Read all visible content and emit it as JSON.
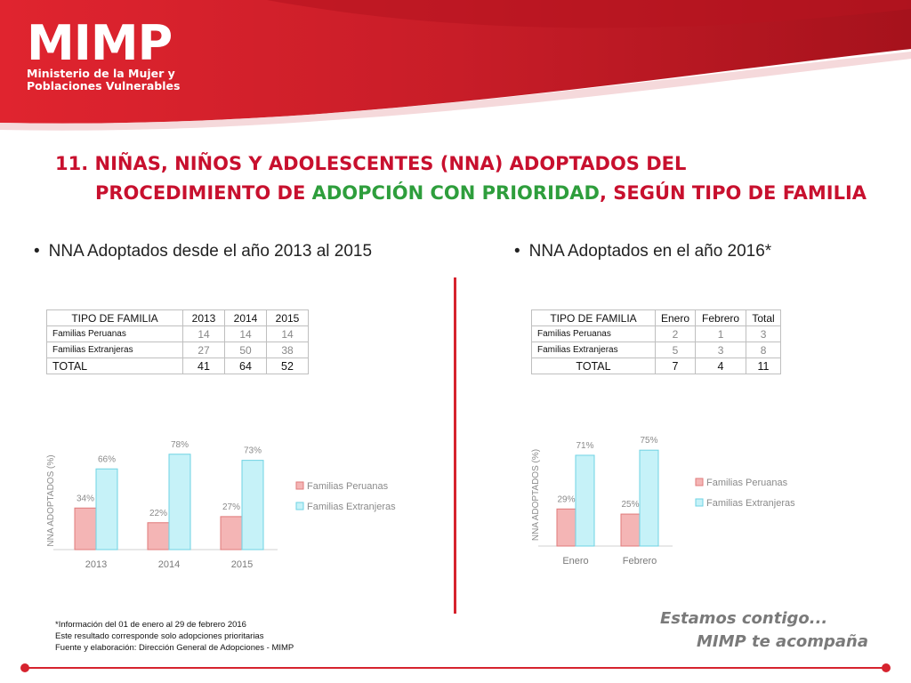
{
  "header": {
    "logo_text": "MIMP",
    "logo_line1": "Ministerio de la Mujer y",
    "logo_line2": "Poblaciones Vulnerables"
  },
  "title": {
    "line1": "11. NIÑAS, NIÑOS Y ADOLESCENTES (NNA) ADOPTADOS DEL",
    "line2_part1": "PROCEDIMIENTO DE ",
    "line2_green": "ADOPCIÓN CON PRIORIDAD",
    "line2_part2": ", SEGÚN TIPO DE FAMILIA"
  },
  "left": {
    "bullet": "NNA Adoptados desde el año 2013 al 2015",
    "table": {
      "headers": [
        "TIPO DE FAMILIA",
        "2013",
        "2014",
        "2015"
      ],
      "rows": [
        [
          "Familias Peruanas",
          "14",
          "14",
          "14"
        ],
        [
          "Familias Extranjeras",
          "27",
          "50",
          "38"
        ]
      ],
      "total": [
        "TOTAL",
        "41",
        "64",
        "52"
      ]
    }
  },
  "right": {
    "bullet": "NNA Adoptados en el año 2016*",
    "table": {
      "headers": [
        "TIPO DE FAMILIA",
        "Enero",
        "Febrero",
        "Total"
      ],
      "rows": [
        [
          "Familias Peruanas",
          "2",
          "1",
          "3"
        ],
        [
          "Familias Extranjeras",
          "5",
          "3",
          "8"
        ]
      ],
      "total": [
        "TOTAL",
        "7",
        "4",
        "11"
      ]
    }
  },
  "chart_data": [
    {
      "type": "bar",
      "categories": [
        "2013",
        "2014",
        "2015"
      ],
      "series": [
        {
          "name": "Familias Peruanas",
          "values": [
            34,
            22,
            27
          ],
          "labels": [
            "34%",
            "22%",
            "27%"
          ],
          "color": "#f4b5b5"
        },
        {
          "name": "Familias Extranjeras",
          "values": [
            66,
            78,
            73
          ],
          "labels": [
            "66%",
            "78%",
            "73%"
          ],
          "color": "#c6f2f8"
        }
      ],
      "ylabel": "NNA ADOPTADOS (%)",
      "ylim": [
        0,
        80
      ],
      "legend": "right"
    },
    {
      "type": "bar",
      "categories": [
        "Enero",
        "Febrero"
      ],
      "series": [
        {
          "name": "Familias Peruanas",
          "values": [
            29,
            25
          ],
          "labels": [
            "29%",
            "25%"
          ],
          "color": "#f4b5b5"
        },
        {
          "name": "Familias Extranjeras",
          "values": [
            71,
            75
          ],
          "labels": [
            "71%",
            "75%"
          ],
          "color": "#c6f2f8"
        }
      ],
      "ylabel": "NNA ADOPTADOS (%)",
      "ylim": [
        0,
        80
      ],
      "legend": "right"
    }
  ],
  "notes": [
    "*Información del 01 de enero al 29 de febrero 2016",
    "Este resultado corresponde solo adopciones prioritarias",
    "Fuente y elaboración: Dirección General de Adopciones - MIMP"
  ],
  "slogan": {
    "line1": "Estamos contigo...",
    "line2": "MIMP te acompaña"
  },
  "colors": {
    "brand_red": "#d6232e",
    "title_red": "#c8102e",
    "accent_green": "#2e9e3c"
  }
}
